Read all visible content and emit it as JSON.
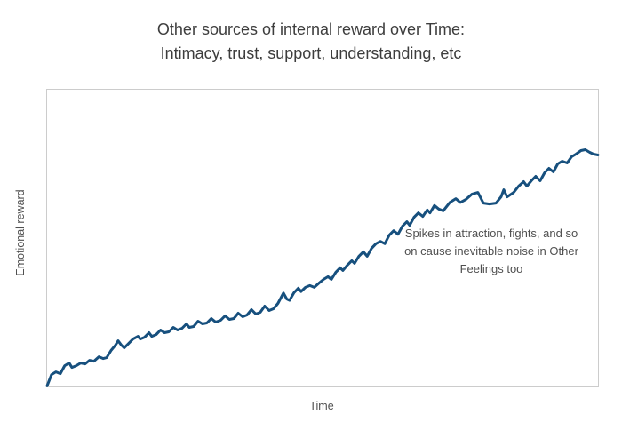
{
  "title": {
    "line1": "Other sources of internal reward over Time:",
    "line2": "Intimacy, trust, support, understanding, etc"
  },
  "colors": {
    "background": "#ffffff",
    "line": "#17507e",
    "title_text": "#3d3d3d",
    "body_text": "#4f4f4f",
    "plot_border": "#cccccc"
  },
  "chart_data": {
    "type": "line",
    "title": "Other sources of internal reward over Time: Intimacy, trust, support, understanding, etc",
    "xlabel": "Time",
    "ylabel": "Emotional reward",
    "x_range": [
      0,
      100
    ],
    "ylim": [
      0,
      100
    ],
    "grid": false,
    "axis_ticks": "none",
    "legend_position": "none",
    "line_color": "#17507e",
    "line_width": 3,
    "annotation": {
      "lines": [
        "Spikes in attraction, fights, and so",
        "on cause inevitable noise in Other",
        "Feelings too"
      ]
    },
    "points": [
      [
        0,
        0.2
      ],
      [
        0.8,
        4
      ],
      [
        1.6,
        4.9
      ],
      [
        2.4,
        4.3
      ],
      [
        3.2,
        7
      ],
      [
        4,
        7.9
      ],
      [
        4.5,
        6.4
      ],
      [
        5.3,
        7
      ],
      [
        6.1,
        7.9
      ],
      [
        6.9,
        7.6
      ],
      [
        7.7,
        8.8
      ],
      [
        8.5,
        8.5
      ],
      [
        9.4,
        10
      ],
      [
        10.2,
        9.4
      ],
      [
        10.8,
        9.7
      ],
      [
        11.6,
        12.1
      ],
      [
        12.4,
        13.9
      ],
      [
        12.9,
        15.4
      ],
      [
        13.5,
        13.9
      ],
      [
        14,
        13
      ],
      [
        14.8,
        14.5
      ],
      [
        15.6,
        16
      ],
      [
        16.5,
        16.9
      ],
      [
        16.9,
        16
      ],
      [
        17.7,
        16.6
      ],
      [
        18.5,
        18.1
      ],
      [
        19,
        16.9
      ],
      [
        19.8,
        17.5
      ],
      [
        20.6,
        19
      ],
      [
        21.3,
        18.1
      ],
      [
        22.1,
        18.4
      ],
      [
        22.9,
        19.9
      ],
      [
        23.7,
        19
      ],
      [
        24.5,
        19.6
      ],
      [
        25.3,
        21.1
      ],
      [
        25.8,
        19.9
      ],
      [
        26.6,
        20.2
      ],
      [
        27.4,
        22
      ],
      [
        28.2,
        21.1
      ],
      [
        29,
        21.4
      ],
      [
        29.8,
        22.9
      ],
      [
        30.6,
        21.7
      ],
      [
        31.5,
        22.3
      ],
      [
        32.3,
        23.8
      ],
      [
        33.1,
        22.6
      ],
      [
        33.9,
        22.9
      ],
      [
        34.7,
        24.7
      ],
      [
        35.5,
        23.5
      ],
      [
        36.3,
        24.1
      ],
      [
        37.1,
        25.9
      ],
      [
        37.9,
        24.4
      ],
      [
        38.7,
        25
      ],
      [
        39.5,
        27.1
      ],
      [
        40.3,
        25.6
      ],
      [
        41.1,
        26.2
      ],
      [
        41.9,
        28
      ],
      [
        42.9,
        31.5
      ],
      [
        43.5,
        29.5
      ],
      [
        44,
        29
      ],
      [
        44.8,
        31.6
      ],
      [
        45.6,
        33.1
      ],
      [
        46.1,
        32
      ],
      [
        46.9,
        33.4
      ],
      [
        47.7,
        34
      ],
      [
        48.5,
        33.4
      ],
      [
        49.4,
        34.9
      ],
      [
        50.2,
        36.1
      ],
      [
        51,
        37
      ],
      [
        51.6,
        36.1
      ],
      [
        52.4,
        38.5
      ],
      [
        53.2,
        40
      ],
      [
        53.7,
        39.1
      ],
      [
        54.5,
        40.9
      ],
      [
        55.3,
        42.4
      ],
      [
        55.8,
        41.5
      ],
      [
        56.6,
        43.9
      ],
      [
        57.4,
        45.4
      ],
      [
        58.1,
        43.9
      ],
      [
        58.9,
        46.6
      ],
      [
        59.7,
        48.1
      ],
      [
        60.5,
        48.9
      ],
      [
        61.3,
        48.1
      ],
      [
        62.1,
        51
      ],
      [
        62.9,
        52.5
      ],
      [
        63.7,
        51.3
      ],
      [
        64.5,
        54
      ],
      [
        65.3,
        55.5
      ],
      [
        65.8,
        54.3
      ],
      [
        66.6,
        57
      ],
      [
        67.4,
        58.5
      ],
      [
        68.2,
        57.3
      ],
      [
        69,
        59.5
      ],
      [
        69.5,
        58.5
      ],
      [
        70.3,
        61
      ],
      [
        71.1,
        59.8
      ],
      [
        71.9,
        59.2
      ],
      [
        73.1,
        62
      ],
      [
        74.2,
        63.3
      ],
      [
        75,
        62
      ],
      [
        76,
        63
      ],
      [
        77.1,
        64.8
      ],
      [
        78.2,
        65.4
      ],
      [
        79.2,
        61.8
      ],
      [
        80.3,
        61.5
      ],
      [
        81.5,
        61.8
      ],
      [
        82.4,
        63.9
      ],
      [
        82.9,
        66.3
      ],
      [
        83.5,
        63.9
      ],
      [
        84.7,
        65.4
      ],
      [
        85.6,
        67.5
      ],
      [
        86.5,
        69
      ],
      [
        87.1,
        67.5
      ],
      [
        87.9,
        69.3
      ],
      [
        88.7,
        70.8
      ],
      [
        89.5,
        69.3
      ],
      [
        90.3,
        72
      ],
      [
        91.1,
        73.5
      ],
      [
        91.9,
        72.3
      ],
      [
        92.7,
        75
      ],
      [
        93.5,
        75.9
      ],
      [
        94.4,
        75.3
      ],
      [
        95.2,
        77.4
      ],
      [
        96,
        78.3
      ],
      [
        96.9,
        79.5
      ],
      [
        97.7,
        79.8
      ],
      [
        98.5,
        78.9
      ],
      [
        99.2,
        78.3
      ],
      [
        100,
        78
      ]
    ]
  }
}
